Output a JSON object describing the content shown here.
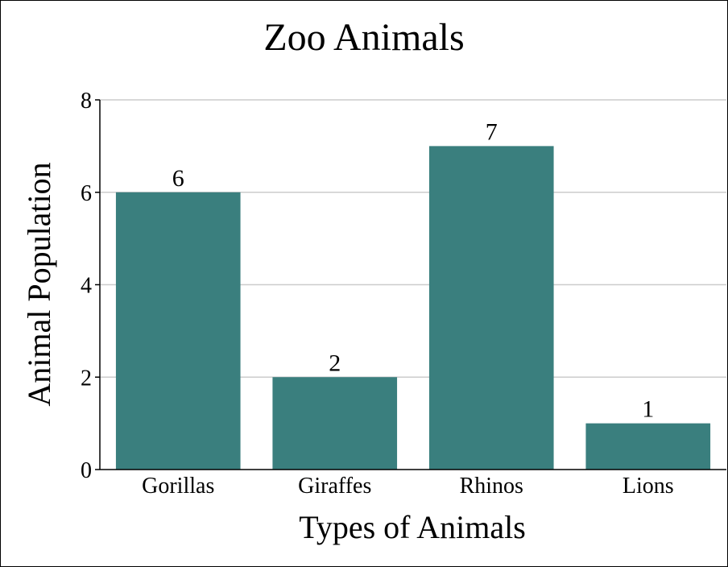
{
  "chart_data": {
    "type": "bar",
    "title": "Zoo Animals",
    "xlabel": "Types of Animals",
    "ylabel": "Animal Population",
    "categories": [
      "Gorillas",
      "Giraffes",
      "Rhinos",
      "Lions"
    ],
    "values": [
      6,
      2,
      7,
      1
    ],
    "ylim": [
      0,
      8
    ],
    "yticks": [
      "0",
      "2",
      "4",
      "6",
      "8"
    ],
    "grid": true,
    "legend": "none",
    "bar_color": "#3a7f7e"
  }
}
